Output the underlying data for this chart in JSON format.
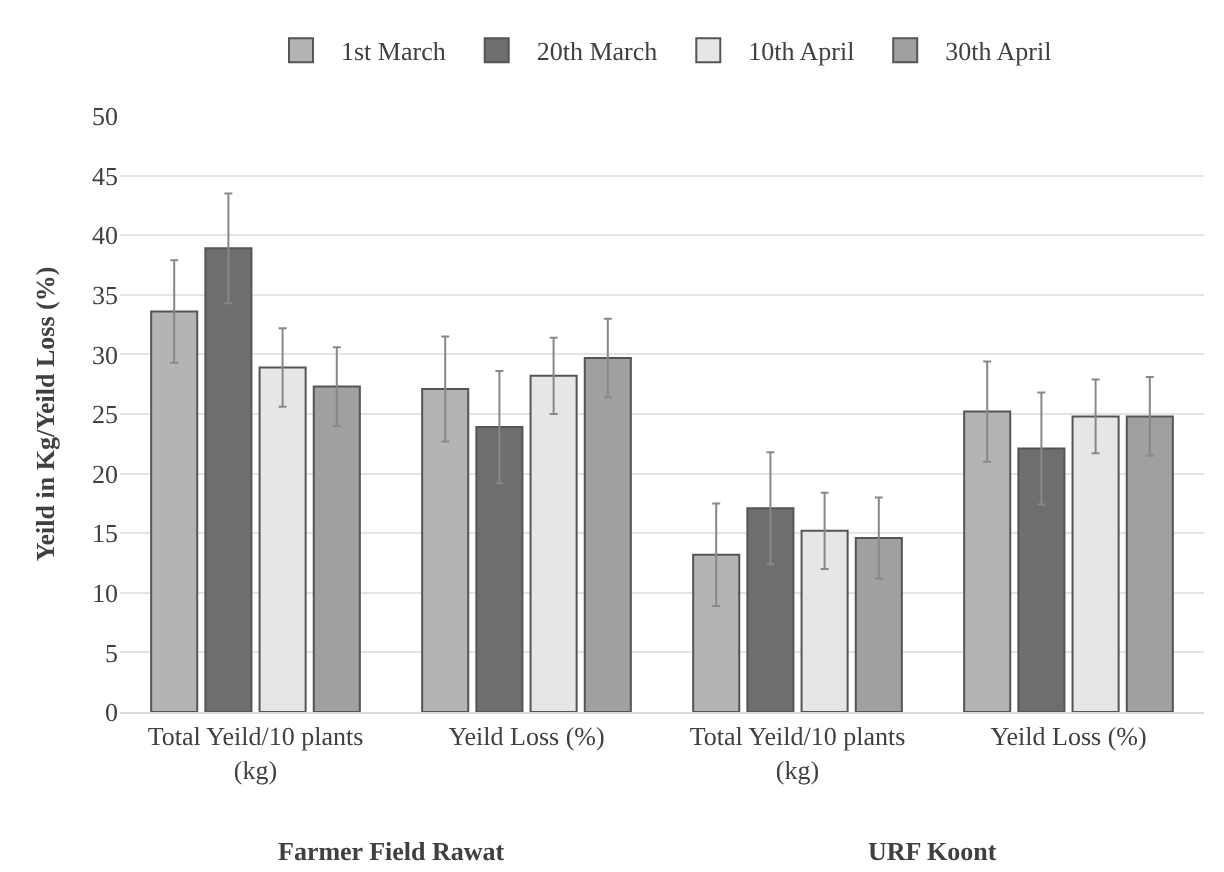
{
  "chart_data": {
    "type": "bar",
    "ylabel": "Yeild in Kg/Yeild Loss (%)",
    "categories": [
      "Total Yeild/10 plants (kg)",
      "Yeild Loss (%)",
      "Total Yeild/10 plants (kg)",
      "Yeild Loss (%)"
    ],
    "series": [
      {
        "name": "1st March",
        "color": "#b4b4b4",
        "values": [
          33.6,
          27.1,
          13.2,
          25.2
        ],
        "errors": [
          4.3,
          4.4,
          4.3,
          4.2
        ]
      },
      {
        "name": "20th March",
        "color": "#6e6e6e",
        "values": [
          38.9,
          23.9,
          17.1,
          22.1
        ],
        "errors": [
          4.6,
          4.7,
          4.7,
          4.7
        ]
      },
      {
        "name": "10th April",
        "color": "#e6e6e6",
        "values": [
          28.9,
          28.2,
          15.2,
          24.8
        ],
        "errors": [
          3.3,
          3.2,
          3.2,
          3.1
        ]
      },
      {
        "name": "30th April",
        "color": "#a0a0a0",
        "values": [
          27.3,
          29.7,
          14.6,
          24.8
        ],
        "errors": [
          3.3,
          3.3,
          3.4,
          3.3
        ]
      }
    ],
    "annotations": [
      "Farmer Field Rawat",
      "URF Koont"
    ],
    "ylim": [
      0,
      50
    ],
    "yticks": [
      0,
      5,
      10,
      15,
      20,
      25,
      30,
      35,
      40,
      45,
      50
    ],
    "grid": "y",
    "legend": "top"
  }
}
